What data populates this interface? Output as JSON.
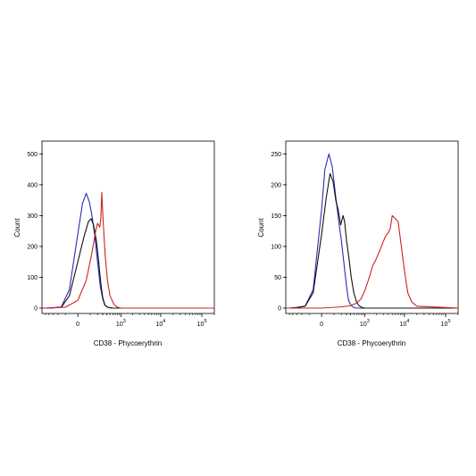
{
  "chart_data": [
    {
      "type": "line",
      "title": "",
      "xlabel": "CD38 - Phycoerythrin",
      "ylabel": "Count",
      "x_scale": "biexponential",
      "x_ticks": [
        {
          "label": "0"
        },
        {
          "label": "10",
          "sup": "3"
        },
        {
          "label": "10",
          "sup": "4"
        },
        {
          "label": "10",
          "sup": "5"
        }
      ],
      "y_ticks": [
        "0",
        "100",
        "200",
        "300",
        "400",
        "500"
      ],
      "ylim": [
        0,
        530
      ],
      "grid": false,
      "legend": "none",
      "series": [
        {
          "color": "#2b2bb8",
          "x": [
            -500,
            -300,
            -150,
            -60,
            0,
            30,
            60,
            90,
            120,
            160,
            200,
            250,
            300,
            350,
            420,
            500,
            600
          ],
          "values": [
            0,
            1,
            4,
            60,
            240,
            340,
            372,
            345,
            300,
            230,
            150,
            70,
            30,
            10,
            3,
            1,
            0
          ]
        },
        {
          "color": "#111111",
          "x": [
            -500,
            -300,
            -150,
            -60,
            0,
            40,
            80,
            110,
            140,
            180,
            220,
            260,
            300,
            350,
            420,
            500,
            600
          ],
          "values": [
            0,
            1,
            3,
            40,
            150,
            230,
            280,
            290,
            270,
            220,
            150,
            80,
            35,
            10,
            3,
            1,
            0
          ]
        },
        {
          "color": "#cc2222",
          "x": [
            -500,
            -300,
            -100,
            0,
            60,
            120,
            170,
            200,
            240,
            260,
            280,
            310,
            360,
            420,
            500,
            650,
            800,
            1000
          ],
          "values": [
            0,
            1,
            3,
            25,
            90,
            180,
            250,
            275,
            262,
            290,
            375,
            280,
            170,
            90,
            40,
            12,
            3,
            0
          ]
        }
      ]
    },
    {
      "type": "line",
      "title": "",
      "xlabel": "CD38 - Phycoerythrin",
      "ylabel": "Count",
      "x_scale": "biexponential",
      "x_ticks": [
        {
          "label": "0"
        },
        {
          "label": "10",
          "sup": "3"
        },
        {
          "label": "10",
          "sup": "4"
        },
        {
          "label": "10",
          "sup": "5"
        }
      ],
      "y_ticks": [
        "0",
        "50",
        "100",
        "150",
        "200",
        "250"
      ],
      "ylim": [
        0,
        265
      ],
      "grid": false,
      "legend": "none",
      "series": [
        {
          "color": "#2b2bb8",
          "x": [
            -500,
            -300,
            -150,
            -60,
            0,
            20,
            50,
            80,
            120,
            160,
            200,
            250,
            300,
            350,
            420,
            500,
            600
          ],
          "values": [
            0,
            1,
            3,
            30,
            160,
            225,
            250,
            230,
            180,
            140,
            110,
            70,
            35,
            12,
            4,
            1,
            0
          ]
        },
        {
          "color": "#111111",
          "x": [
            -500,
            -300,
            -150,
            -60,
            0,
            30,
            60,
            90,
            120,
            150,
            190,
            230,
            260,
            300,
            360,
            420,
            500,
            600,
            700,
            850,
            1000
          ],
          "values": [
            0,
            1,
            3,
            25,
            120,
            180,
            218,
            205,
            175,
            160,
            135,
            150,
            140,
            110,
            80,
            50,
            25,
            10,
            4,
            1,
            0
          ]
        },
        {
          "color": "#cc2222",
          "x": [
            0,
            200,
            400,
            600,
            800,
            1000,
            1200,
            1400,
            1600,
            2000,
            2500,
            3000,
            3500,
            4000,
            4500,
            5000,
            6000,
            7000,
            8000,
            10000,
            12000,
            15000,
            20000,
            100000
          ],
          "values": [
            0,
            2,
            4,
            8,
            15,
            28,
            42,
            55,
            68,
            80,
            95,
            108,
            118,
            122,
            130,
            150,
            145,
            140,
            110,
            60,
            25,
            10,
            3,
            1
          ]
        }
      ]
    }
  ]
}
